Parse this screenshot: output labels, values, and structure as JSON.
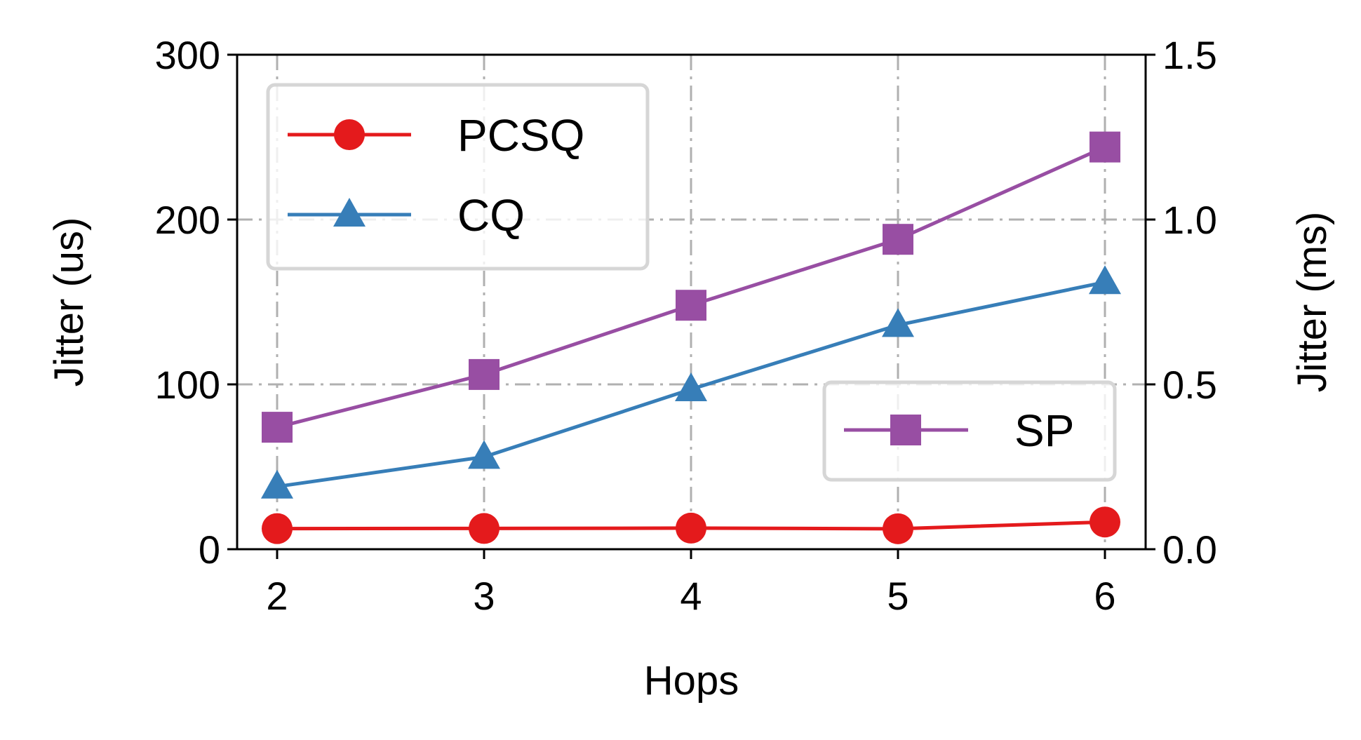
{
  "chart_data": {
    "type": "line",
    "title": "",
    "xlabel": "Hops",
    "ylabel_left": "Jitter (us)",
    "ylabel_right": "Jitter (ms)",
    "x": [
      2,
      3,
      4,
      5,
      6
    ],
    "x_tick_labels": [
      "2",
      "3",
      "4",
      "5",
      "6"
    ],
    "ylim_left": [
      0,
      300
    ],
    "y_left_tick_labels": [
      "0",
      "100",
      "200",
      "300"
    ],
    "ylim_right": [
      0,
      1.5
    ],
    "y_right_tick_labels": [
      "0.0",
      "0.5",
      "1.0",
      "1.5"
    ],
    "grid": true,
    "series": [
      {
        "name": "PCSQ",
        "axis": "left",
        "marker": "circle",
        "color": "#e41a1c",
        "values": [
          12.5,
          12.6,
          12.8,
          12.4,
          16.5
        ]
      },
      {
        "name": "CQ",
        "axis": "left",
        "marker": "triangle",
        "color": "#377eb8",
        "values": [
          38,
          56,
          97,
          136,
          162
        ]
      },
      {
        "name": "SP",
        "axis": "right",
        "marker": "square",
        "color": "#984ea3",
        "values": [
          0.37,
          0.53,
          0.74,
          0.94,
          1.22
        ]
      }
    ],
    "legends": [
      {
        "placement": "upper-left",
        "entries": [
          "PCSQ",
          "CQ"
        ]
      },
      {
        "placement": "lower-right",
        "entries": [
          "SP"
        ]
      }
    ]
  }
}
